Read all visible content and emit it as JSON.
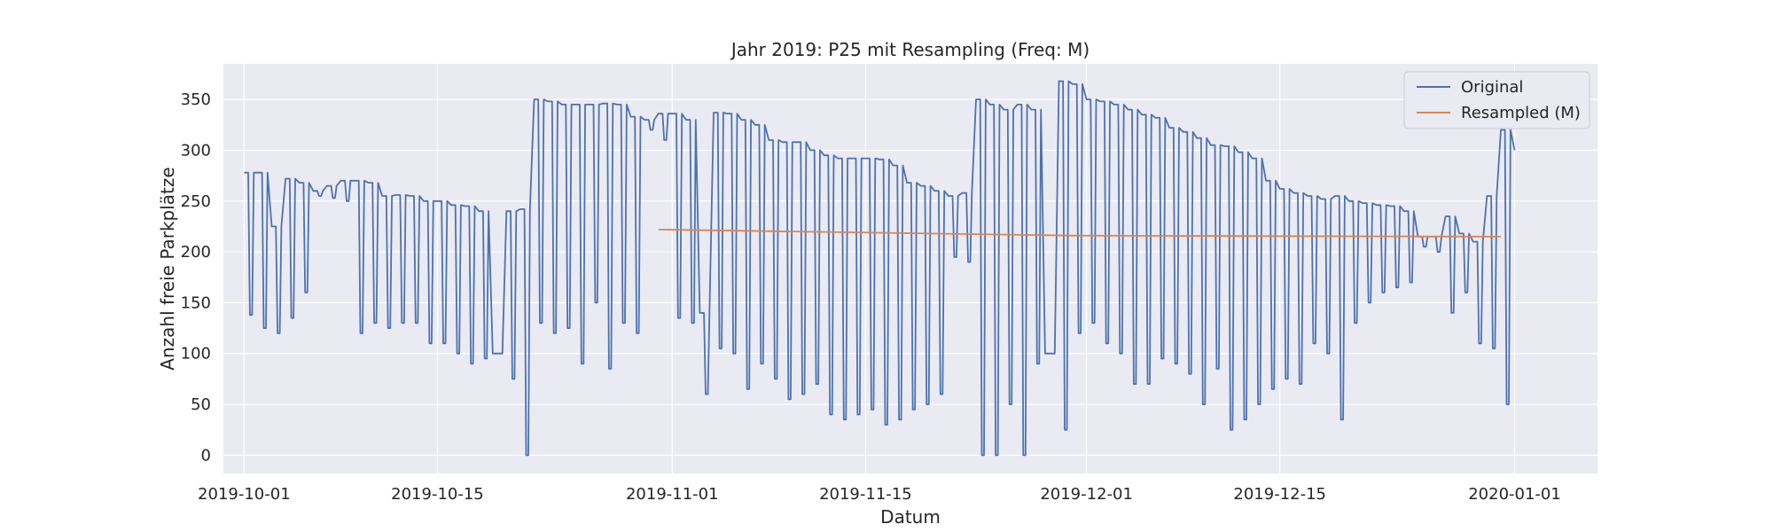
{
  "chart_data": {
    "type": "line",
    "title": "Jahr 2019: P25 mit Resampling (Freq: M)",
    "xlabel": "Datum",
    "ylabel": "Anzahl freie Parkplätze",
    "x_type": "date",
    "xlim": [
      "2019-09-29T12:00",
      "2020-01-07T00:00"
    ],
    "ylim": [
      -18,
      385
    ],
    "xticks": [
      "2019-10-01",
      "2019-10-15",
      "2019-11-01",
      "2019-11-15",
      "2019-12-01",
      "2019-12-15",
      "2020-01-01"
    ],
    "yticks": [
      0,
      50,
      100,
      150,
      200,
      250,
      300,
      350
    ],
    "grid": true,
    "legend_position": "top-right",
    "colors": {
      "background": "#eaeaf2",
      "grid": "#ffffff",
      "original": "#4c72b0",
      "resampled": "#dd8452"
    },
    "series": [
      {
        "name": "Original",
        "color": "#4c72b0",
        "x": [
          "2019-10-01",
          "2019-10-02",
          "2019-10-03",
          "2019-10-04",
          "2019-10-05",
          "2019-10-06",
          "2019-10-07",
          "2019-10-08",
          "2019-10-09",
          "2019-10-10",
          "2019-10-11",
          "2019-10-12",
          "2019-10-13",
          "2019-10-14",
          "2019-10-15",
          "2019-10-16",
          "2019-10-17",
          "2019-10-18",
          "2019-10-19",
          "2019-10-20",
          "2019-10-21",
          "2019-10-22",
          "2019-10-23",
          "2019-10-24",
          "2019-10-25",
          "2019-10-26",
          "2019-10-27",
          "2019-10-28",
          "2019-10-29",
          "2019-10-30",
          "2019-10-31",
          "2019-11-01",
          "2019-11-02",
          "2019-11-03",
          "2019-11-04",
          "2019-11-05",
          "2019-11-06",
          "2019-11-07",
          "2019-11-08",
          "2019-11-09",
          "2019-11-10",
          "2019-11-11",
          "2019-11-12",
          "2019-11-13",
          "2019-11-14",
          "2019-11-15",
          "2019-11-16",
          "2019-11-17",
          "2019-11-18",
          "2019-11-19",
          "2019-11-20",
          "2019-11-21",
          "2019-11-22",
          "2019-11-23",
          "2019-11-24",
          "2019-11-25",
          "2019-11-26",
          "2019-11-27",
          "2019-11-28",
          "2019-11-29",
          "2019-11-30",
          "2019-12-01",
          "2019-12-02",
          "2019-12-03",
          "2019-12-04",
          "2019-12-05",
          "2019-12-06",
          "2019-12-07",
          "2019-12-08",
          "2019-12-09",
          "2019-12-10",
          "2019-12-11",
          "2019-12-12",
          "2019-12-13",
          "2019-12-14",
          "2019-12-15",
          "2019-12-16",
          "2019-12-17",
          "2019-12-18",
          "2019-12-19",
          "2019-12-20",
          "2019-12-21",
          "2019-12-22",
          "2019-12-23",
          "2019-12-24",
          "2019-12-25",
          "2019-12-26",
          "2019-12-27",
          "2019-12-28",
          "2019-12-29",
          "2019-12-30",
          "2019-12-31"
        ],
        "daily_high": [
          278,
          278,
          225,
          272,
          268,
          260,
          265,
          270,
          270,
          268,
          255,
          256,
          255,
          250,
          250,
          246,
          245,
          240,
          100,
          240,
          242,
          350,
          348,
          345,
          345,
          345,
          346,
          345,
          333,
          330,
          336,
          336,
          330,
          140,
          337,
          336,
          330,
          325,
          310,
          308,
          308,
          300,
          295,
          292,
          292,
          292,
          291,
          285,
          268,
          265,
          260,
          255,
          258,
          350,
          345,
          340,
          345,
          340,
          100,
          368,
          365,
          350,
          348,
          345,
          340,
          335,
          332,
          322,
          318,
          312,
          305,
          304,
          298,
          292,
          270,
          262,
          258,
          255,
          252,
          255,
          250,
          248,
          246,
          245,
          240,
          215,
          215,
          235,
          218,
          210,
          255,
          320
        ],
        "daily_low": [
          138,
          125,
          120,
          135,
          160,
          255,
          253,
          250,
          120,
          130,
          125,
          130,
          130,
          110,
          110,
          100,
          90,
          95,
          100,
          75,
          0,
          130,
          120,
          125,
          90,
          150,
          85,
          130,
          120,
          320,
          310,
          135,
          130,
          60,
          105,
          100,
          65,
          90,
          75,
          55,
          60,
          70,
          40,
          35,
          40,
          45,
          30,
          35,
          45,
          50,
          60,
          195,
          190,
          0,
          0,
          50,
          0,
          90,
          100,
          25,
          120,
          130,
          110,
          100,
          70,
          70,
          95,
          90,
          80,
          50,
          85,
          25,
          35,
          50,
          65,
          75,
          70,
          110,
          100,
          35,
          130,
          150,
          160,
          165,
          170,
          205,
          200,
          140,
          160,
          110,
          105,
          50
        ]
      },
      {
        "name": "Resampled (M)",
        "color": "#dd8452",
        "x": [
          "2019-10-31",
          "2019-11-30",
          "2019-12-31"
        ],
        "y": [
          222,
          216,
          215
        ]
      }
    ]
  }
}
